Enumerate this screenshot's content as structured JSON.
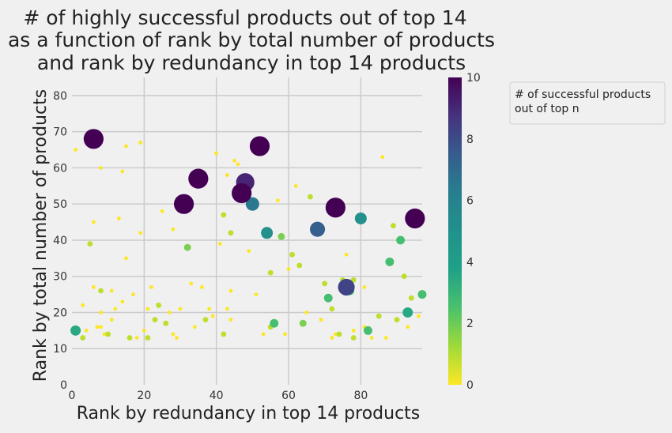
{
  "chart_data": {
    "type": "scatter",
    "title_lines": [
      "# of highly successful products out of top 14",
      "as a function of rank by total number of products",
      "and rank by redundancy in top 14 products"
    ],
    "xlabel": "Rank by redundancy in top 14 products",
    "ylabel": "Rank by total number of products",
    "xlim": [
      0,
      97
    ],
    "ylim": [
      0,
      85
    ],
    "x_ticks": [
      0,
      20,
      40,
      60,
      80
    ],
    "y_ticks": [
      0,
      10,
      20,
      30,
      40,
      50,
      60,
      70,
      80
    ],
    "grid": true,
    "colorbar": {
      "colormap": "viridis_r",
      "min": 0,
      "max": 10,
      "ticks": [
        0,
        2,
        4,
        6,
        8,
        10
      ]
    },
    "legend": {
      "title": "# of successful products\n out of top n",
      "placement": "upper-right-outside"
    },
    "size_encodes": "color value",
    "points": [
      {
        "x": 6,
        "y": 68,
        "v": 10
      },
      {
        "x": 31,
        "y": 50,
        "v": 10
      },
      {
        "x": 35,
        "y": 57,
        "v": 10
      },
      {
        "x": 47,
        "y": 53,
        "v": 10
      },
      {
        "x": 48,
        "y": 56,
        "v": 9
      },
      {
        "x": 52,
        "y": 66,
        "v": 10
      },
      {
        "x": 50,
        "y": 50,
        "v": 6
      },
      {
        "x": 54,
        "y": 42,
        "v": 5
      },
      {
        "x": 68,
        "y": 43,
        "v": 7
      },
      {
        "x": 73,
        "y": 49,
        "v": 10
      },
      {
        "x": 80,
        "y": 46,
        "v": 5
      },
      {
        "x": 95,
        "y": 46,
        "v": 10
      },
      {
        "x": 76,
        "y": 27,
        "v": 8
      },
      {
        "x": 77,
        "y": 26,
        "v": 3
      },
      {
        "x": 71,
        "y": 24,
        "v": 3
      },
      {
        "x": 91,
        "y": 40,
        "v": 3
      },
      {
        "x": 88,
        "y": 34,
        "v": 3
      },
      {
        "x": 93,
        "y": 20,
        "v": 4
      },
      {
        "x": 97,
        "y": 25,
        "v": 3
      },
      {
        "x": 82,
        "y": 15,
        "v": 3
      },
      {
        "x": 1,
        "y": 15,
        "v": 4
      },
      {
        "x": 56,
        "y": 17,
        "v": 3
      },
      {
        "x": 64,
        "y": 17,
        "v": 2
      },
      {
        "x": 58,
        "y": 41,
        "v": 2
      },
      {
        "x": 32,
        "y": 38,
        "v": 2
      },
      {
        "x": 42,
        "y": 47,
        "v": 1
      },
      {
        "x": 44,
        "y": 42,
        "v": 1
      },
      {
        "x": 55,
        "y": 31,
        "v": 1
      },
      {
        "x": 61,
        "y": 36,
        "v": 1
      },
      {
        "x": 63,
        "y": 33,
        "v": 1
      },
      {
        "x": 66,
        "y": 52,
        "v": 1
      },
      {
        "x": 89,
        "y": 44,
        "v": 1
      },
      {
        "x": 92,
        "y": 30,
        "v": 1
      },
      {
        "x": 94,
        "y": 24,
        "v": 1
      },
      {
        "x": 85,
        "y": 19,
        "v": 1
      },
      {
        "x": 90,
        "y": 18,
        "v": 1
      },
      {
        "x": 8,
        "y": 26,
        "v": 1
      },
      {
        "x": 5,
        "y": 39,
        "v": 1
      },
      {
        "x": 24,
        "y": 22,
        "v": 1
      },
      {
        "x": 23,
        "y": 18,
        "v": 1
      },
      {
        "x": 26,
        "y": 17,
        "v": 1
      },
      {
        "x": 37,
        "y": 18,
        "v": 1
      },
      {
        "x": 42,
        "y": 14,
        "v": 1
      },
      {
        "x": 10,
        "y": 14,
        "v": 1
      },
      {
        "x": 16,
        "y": 13,
        "v": 1
      },
      {
        "x": 21,
        "y": 13,
        "v": 1
      },
      {
        "x": 3,
        "y": 13,
        "v": 1
      },
      {
        "x": 74,
        "y": 14,
        "v": 1
      },
      {
        "x": 78,
        "y": 13,
        "v": 1
      },
      {
        "x": 55,
        "y": 16,
        "v": 1
      },
      {
        "x": 70,
        "y": 28,
        "v": 1
      },
      {
        "x": 72,
        "y": 21,
        "v": 1
      },
      {
        "x": 78,
        "y": 29,
        "v": 1
      },
      {
        "x": 75,
        "y": 29,
        "v": 1
      },
      {
        "x": 1,
        "y": 65,
        "v": 0
      },
      {
        "x": 15,
        "y": 66,
        "v": 0
      },
      {
        "x": 19,
        "y": 67,
        "v": 0
      },
      {
        "x": 8,
        "y": 60,
        "v": 0
      },
      {
        "x": 14,
        "y": 59,
        "v": 0
      },
      {
        "x": 40,
        "y": 64,
        "v": 0
      },
      {
        "x": 45,
        "y": 62,
        "v": 0
      },
      {
        "x": 46,
        "y": 61,
        "v": 0
      },
      {
        "x": 43,
        "y": 58,
        "v": 0
      },
      {
        "x": 62,
        "y": 55,
        "v": 0
      },
      {
        "x": 57,
        "y": 51,
        "v": 0
      },
      {
        "x": 86,
        "y": 63,
        "v": 0
      },
      {
        "x": 6,
        "y": 45,
        "v": 0
      },
      {
        "x": 13,
        "y": 46,
        "v": 0
      },
      {
        "x": 25,
        "y": 48,
        "v": 0
      },
      {
        "x": 19,
        "y": 42,
        "v": 0
      },
      {
        "x": 28,
        "y": 43,
        "v": 0
      },
      {
        "x": 41,
        "y": 39,
        "v": 0
      },
      {
        "x": 49,
        "y": 37,
        "v": 0
      },
      {
        "x": 15,
        "y": 35,
        "v": 0
      },
      {
        "x": 76,
        "y": 36,
        "v": 0
      },
      {
        "x": 60,
        "y": 32,
        "v": 0
      },
      {
        "x": 6,
        "y": 27,
        "v": 0
      },
      {
        "x": 11,
        "y": 26,
        "v": 0
      },
      {
        "x": 17,
        "y": 25,
        "v": 0
      },
      {
        "x": 22,
        "y": 27,
        "v": 0
      },
      {
        "x": 33,
        "y": 28,
        "v": 0
      },
      {
        "x": 36,
        "y": 27,
        "v": 0
      },
      {
        "x": 44,
        "y": 26,
        "v": 0
      },
      {
        "x": 51,
        "y": 25,
        "v": 0
      },
      {
        "x": 81,
        "y": 27,
        "v": 0
      },
      {
        "x": 3,
        "y": 22,
        "v": 0
      },
      {
        "x": 14,
        "y": 23,
        "v": 0
      },
      {
        "x": 12,
        "y": 21,
        "v": 0
      },
      {
        "x": 21,
        "y": 21,
        "v": 0
      },
      {
        "x": 30,
        "y": 21,
        "v": 0
      },
      {
        "x": 38,
        "y": 21,
        "v": 0
      },
      {
        "x": 43,
        "y": 21,
        "v": 0
      },
      {
        "x": 8,
        "y": 20,
        "v": 0
      },
      {
        "x": 27,
        "y": 20,
        "v": 0
      },
      {
        "x": 39,
        "y": 19,
        "v": 0
      },
      {
        "x": 65,
        "y": 20,
        "v": 0
      },
      {
        "x": 96,
        "y": 19,
        "v": 0
      },
      {
        "x": 11,
        "y": 18,
        "v": 0
      },
      {
        "x": 44,
        "y": 18,
        "v": 0
      },
      {
        "x": 69,
        "y": 18,
        "v": 0
      },
      {
        "x": 7,
        "y": 16,
        "v": 0
      },
      {
        "x": 8,
        "y": 16,
        "v": 0
      },
      {
        "x": 34,
        "y": 16,
        "v": 0
      },
      {
        "x": 81,
        "y": 16,
        "v": 0
      },
      {
        "x": 93,
        "y": 16,
        "v": 0
      },
      {
        "x": 2,
        "y": 15,
        "v": 0
      },
      {
        "x": 4,
        "y": 15,
        "v": 0
      },
      {
        "x": 20,
        "y": 15,
        "v": 0
      },
      {
        "x": 78,
        "y": 15,
        "v": 0
      },
      {
        "x": 9,
        "y": 14,
        "v": 0
      },
      {
        "x": 28,
        "y": 14,
        "v": 0
      },
      {
        "x": 53,
        "y": 14,
        "v": 0
      },
      {
        "x": 59,
        "y": 14,
        "v": 0
      },
      {
        "x": 73,
        "y": 14,
        "v": 0
      },
      {
        "x": 18,
        "y": 13,
        "v": 0
      },
      {
        "x": 29,
        "y": 13,
        "v": 0
      },
      {
        "x": 72,
        "y": 13,
        "v": 0
      },
      {
        "x": 83,
        "y": 13,
        "v": 0
      },
      {
        "x": 87,
        "y": 13,
        "v": 0
      }
    ]
  }
}
